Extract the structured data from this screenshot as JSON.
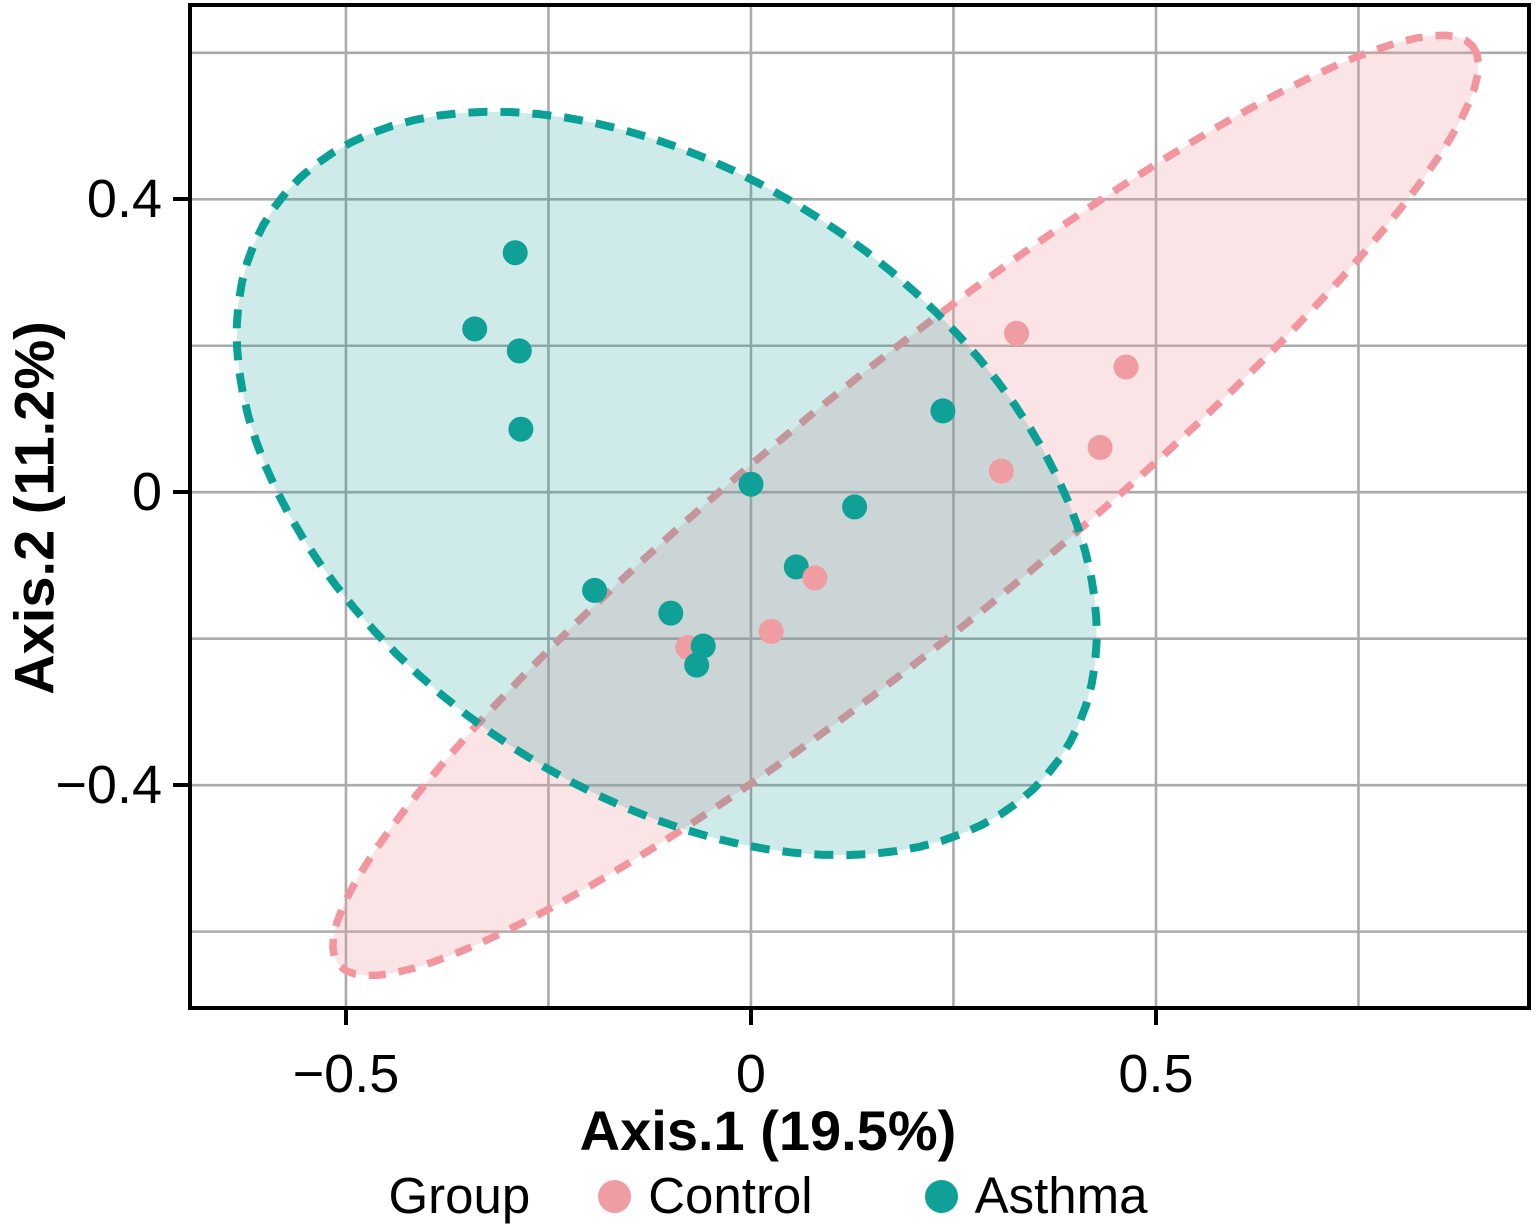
{
  "chart_data": {
    "type": "scatter",
    "xlabel": "Axis.1 (19.5%)",
    "ylabel": "Axis.2 (11.2%)",
    "x_range": [
      -0.695,
      0.963
    ],
    "y_range": [
      -0.707,
      0.668
    ],
    "x_gridlines": [
      -0.5,
      -0.25,
      0,
      0.25,
      0.5,
      0.75
    ],
    "y_gridlines": [
      -0.6,
      -0.4,
      -0.2,
      0,
      0.2,
      0.4,
      0.6
    ],
    "x_ticks": [
      {
        "value": -0.5,
        "label": "−0.5"
      },
      {
        "value": 0,
        "label": "0"
      },
      {
        "value": 0.5,
        "label": "0.5"
      }
    ],
    "y_ticks": [
      {
        "value": 0.4,
        "label": "0.4"
      },
      {
        "value": 0,
        "label": "0"
      },
      {
        "value": -0.4,
        "label": "−0.4"
      }
    ],
    "grid": true,
    "legend": {
      "title": "Group",
      "position": "bottom",
      "entries": [
        {
          "label": "Control",
          "color": "#F09CA3"
        },
        {
          "label": "Asthma",
          "color": "#0FA097"
        }
      ]
    },
    "colors": {
      "control": "#F09CA3",
      "control_stroke": "#F2959F",
      "control_fill": "rgba(241,157,164,0.28)",
      "asthma": "#0FA097",
      "asthma_stroke": "#0AA096",
      "asthma_fill": "rgba(14,155,146,0.20)",
      "grid": "#ABABAB",
      "panel_border": "#000000",
      "text": "#000000"
    },
    "points": [
      {
        "group": "Control",
        "x": 0.328,
        "y": 0.217
      },
      {
        "group": "Control",
        "x": 0.463,
        "y": 0.171
      },
      {
        "group": "Control",
        "x": 0.431,
        "y": 0.061
      },
      {
        "group": "Control",
        "x": 0.309,
        "y": 0.029
      },
      {
        "group": "Control",
        "x": -0.078,
        "y": -0.212
      },
      {
        "group": "Control",
        "x": 0.025,
        "y": -0.19
      },
      {
        "group": "Asthma",
        "x": -0.291,
        "y": 0.327
      },
      {
        "group": "Asthma",
        "x": -0.341,
        "y": 0.223
      },
      {
        "group": "Asthma",
        "x": -0.286,
        "y": 0.193
      },
      {
        "group": "Asthma",
        "x": -0.284,
        "y": 0.086
      },
      {
        "group": "Asthma",
        "x": 0.237,
        "y": 0.111
      },
      {
        "group": "Asthma",
        "x": 0.0,
        "y": 0.011
      },
      {
        "group": "Asthma",
        "x": 0.128,
        "y": -0.02
      },
      {
        "group": "Asthma",
        "x": 0.056,
        "y": -0.102
      },
      {
        "group": "Control",
        "x": 0.079,
        "y": -0.117
      },
      {
        "group": "Asthma",
        "x": -0.193,
        "y": -0.134
      },
      {
        "group": "Asthma",
        "x": -0.099,
        "y": -0.165
      },
      {
        "group": "Asthma",
        "x": -0.059,
        "y": -0.21
      },
      {
        "group": "Asthma",
        "x": -0.067,
        "y": -0.236
      }
    ],
    "confidence_ellipses": [
      {
        "group": "Control",
        "center": [
          0.191,
          -0.018
        ],
        "semi_axis_1": [
          0.7,
          0.627
        ],
        "semi_axis_2": [
          0.101,
          -0.138
        ],
        "line_style": "dashed"
      },
      {
        "group": "Asthma",
        "center": [
          -0.104,
          0.012
        ],
        "semi_axis_1": [
          0.485,
          -0.376
        ],
        "semi_axis_2": [
          -0.216,
          -0.341
        ],
        "line_style": "dashed"
      }
    ]
  }
}
